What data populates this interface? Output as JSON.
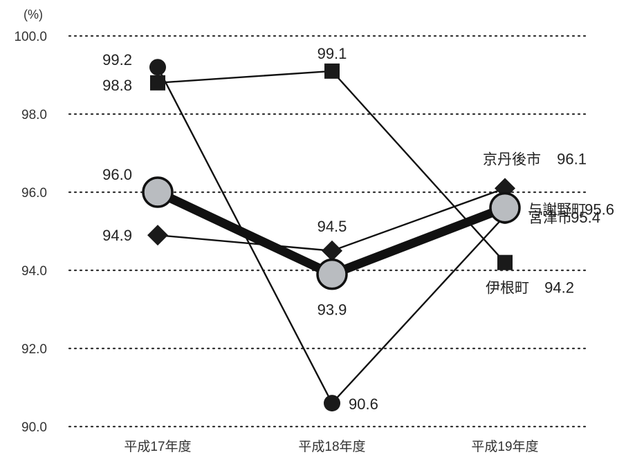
{
  "chart_data": {
    "type": "line",
    "unit_label": "(%)",
    "categories": [
      "平成17年度",
      "平成18年度",
      "平成19年度"
    ],
    "ylim": [
      90.0,
      100.0
    ],
    "yticks": [
      "100.0",
      "98.0",
      "96.0",
      "94.0",
      "92.0",
      "90.0"
    ],
    "grid": "dotted horizontal",
    "series": [
      {
        "name": "与謝野町",
        "values": [
          96.0,
          93.9,
          95.6
        ],
        "marker": "large-circle",
        "color": "#b9bcc0",
        "labels": [
          "96.0",
          "93.9",
          "95.6"
        ]
      },
      {
        "name": "宮津市",
        "values": [
          99.2,
          90.6,
          95.4
        ],
        "marker": "circle",
        "color": "#1a1a1a",
        "labels": [
          "99.2",
          "90.6",
          "95.4"
        ]
      },
      {
        "name": "伊根町",
        "values": [
          98.8,
          99.1,
          94.2
        ],
        "marker": "square",
        "color": "#1a1a1a",
        "labels": [
          "98.8",
          "99.1",
          "94.2"
        ]
      },
      {
        "name": "京丹後市",
        "values": [
          94.9,
          94.5,
          96.1
        ],
        "marker": "diamond",
        "color": "#1a1a1a",
        "labels": [
          "94.9",
          "94.5",
          "96.1"
        ]
      }
    ]
  }
}
